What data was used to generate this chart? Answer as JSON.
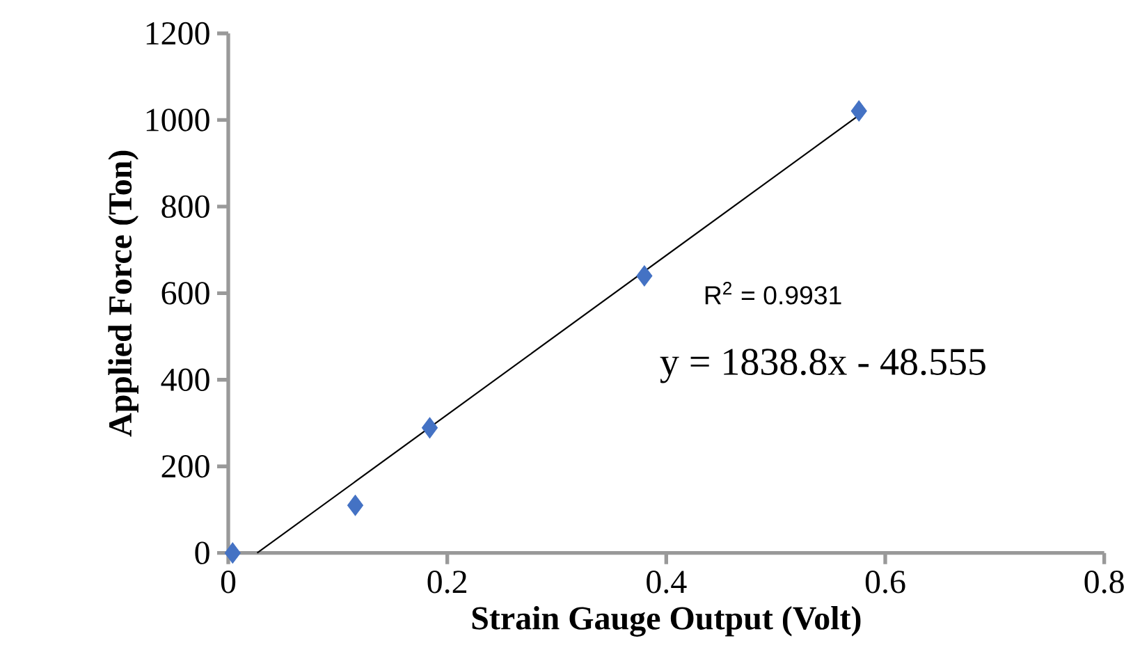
{
  "chart_data": {
    "type": "scatter",
    "xlabel": "Strain Gauge  Output (Volt)",
    "ylabel": "Applied Force (Ton)",
    "xlim": [
      0,
      0.8
    ],
    "xticks": [
      0,
      0.2,
      0.4,
      0.6,
      0.8
    ],
    "ylim": [
      0,
      1200
    ],
    "yticks": [
      0,
      200,
      400,
      600,
      800,
      1000,
      1200
    ],
    "marker": "diamond",
    "series": [
      {
        "color": "#4472c4",
        "x": [
          0.004,
          0.116,
          0.184,
          0.38,
          0.576
        ],
        "values": [
          0,
          110,
          289,
          640,
          1021
        ]
      },
      {
        "type": "line",
        "marker": "none",
        "color": "#000000",
        "x": [
          0.0264,
          0.576
        ],
        "values": [
          0,
          1011
        ]
      }
    ],
    "annotations": [
      "R$^{2}$ = 0.9931",
      "y = 1838.8x - 48.555"
    ]
  }
}
